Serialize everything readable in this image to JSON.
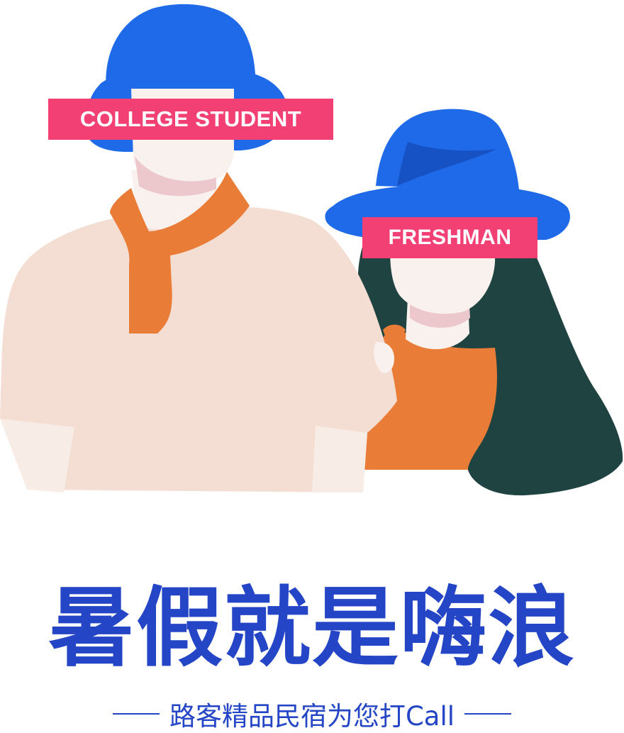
{
  "labels": {
    "college_student": "COLLEGE STUDENT",
    "freshman": "FRESHMAN"
  },
  "headline": "暑假就是嗨浪",
  "subline": "路客精品民宿为您打Call",
  "colors": {
    "label_bg": "#f23f74",
    "headline": "#2446c6",
    "hat_blue": "#1f6ae8",
    "scarf_orange": "#e97d37",
    "shirt_pink": "#f4ddd2",
    "hair_green": "#1e4340"
  }
}
